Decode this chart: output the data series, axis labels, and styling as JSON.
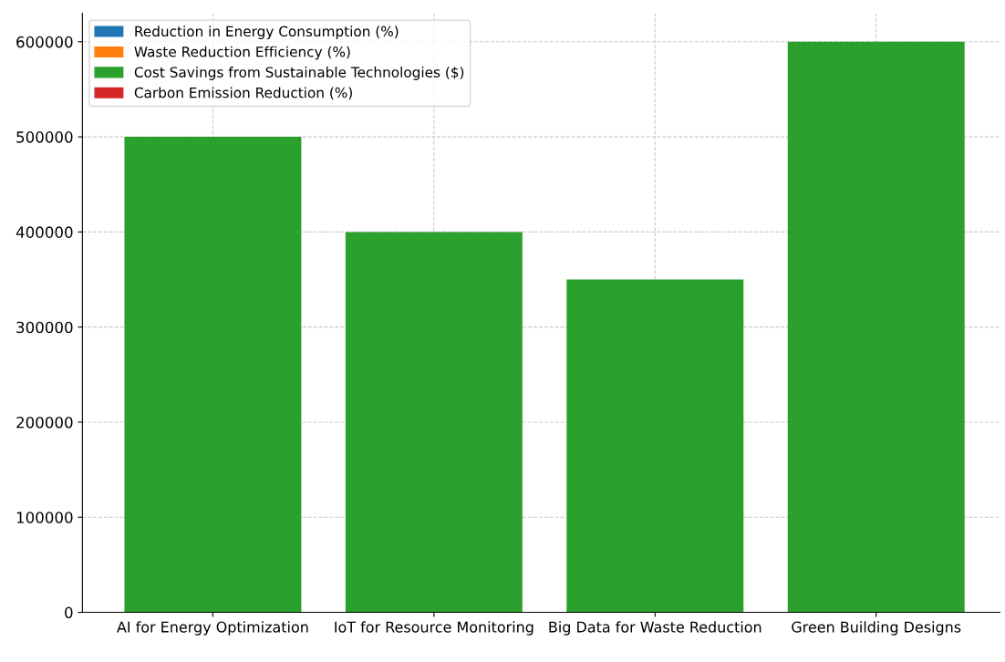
{
  "chart_data": {
    "type": "bar",
    "categories": [
      "AI for Energy Optimization",
      "IoT for Resource Monitoring",
      "Big Data for Waste Reduction",
      "Green Building Designs"
    ],
    "series": [
      {
        "name": "Reduction in Energy Consumption (%)",
        "color": "#1f77b4",
        "values": [
          0,
          0,
          0,
          0
        ]
      },
      {
        "name": "Waste Reduction Efficiency (%)",
        "color": "#ff7f0e",
        "values": [
          0,
          0,
          0,
          0
        ]
      },
      {
        "name": "Cost Savings from Sustainable Technologies ($)",
        "color": "#2ca02c",
        "values": [
          500000,
          400000,
          350000,
          600000
        ]
      },
      {
        "name": "Carbon Emission Reduction (%)",
        "color": "#d62728",
        "values": [
          0,
          0,
          0,
          0
        ]
      }
    ],
    "ylim": [
      0,
      630000
    ],
    "yticks": [
      0,
      100000,
      200000,
      300000,
      400000,
      500000,
      600000
    ],
    "grid": true,
    "legend": "top left"
  }
}
